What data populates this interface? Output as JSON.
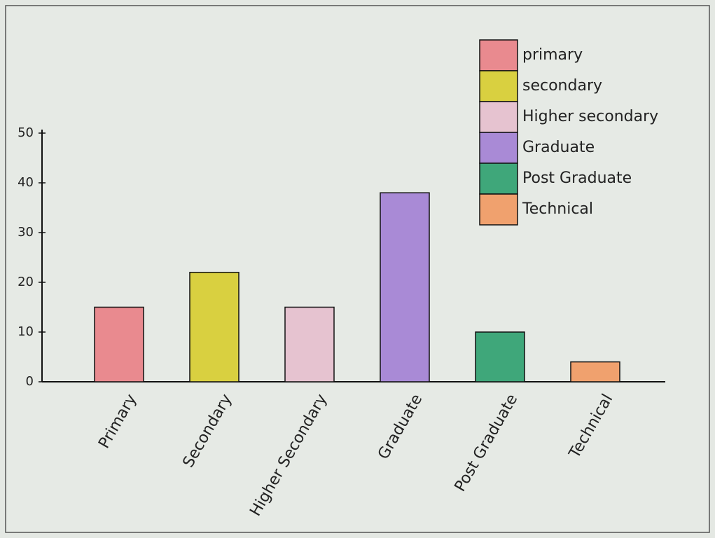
{
  "chart_data": {
    "type": "bar",
    "categories": [
      "Primary",
      "Secondary",
      "Higher Secondary",
      "Graduate",
      "Post Graduate",
      "Technical"
    ],
    "values": [
      15,
      22,
      15,
      38,
      10,
      4
    ],
    "colors": [
      "#e98a8f",
      "#d9d040",
      "#e6c3d0",
      "#a98ad6",
      "#3fa77a",
      "#f0a16e"
    ],
    "legend_labels": [
      "primary",
      "secondary",
      "Higher secondary",
      "Graduate",
      "Post Graduate",
      "Technical"
    ],
    "ylim": [
      0,
      50
    ],
    "yticks": [
      0,
      10,
      20,
      30,
      40,
      50
    ],
    "grid": false
  }
}
